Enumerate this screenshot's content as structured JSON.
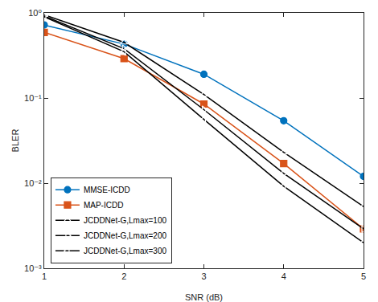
{
  "chart_data": {
    "type": "line",
    "x_label": "SNR (dB)",
    "y_label": "BLER",
    "x": [
      1,
      2,
      3,
      4,
      5
    ],
    "series": [
      {
        "name": "MMSE-ICDD",
        "color": "#0072BD",
        "marker": "circle",
        "values": [
          0.72,
          0.43,
          0.19,
          0.054,
          0.012
        ]
      },
      {
        "name": "MAP-ICDD",
        "color": "#D95319",
        "marker": "square",
        "values": [
          0.59,
          0.29,
          0.085,
          0.017,
          0.0029
        ]
      },
      {
        "name": "JCDDNet-G,Lmax=100",
        "color": "#000000",
        "marker": "triangle-up-open",
        "values": [
          0.95,
          0.45,
          0.11,
          0.023,
          0.0053
        ]
      },
      {
        "name": "JCDDNet-G,Lmax=200",
        "color": "#000000",
        "marker": "triangle-right-open",
        "values": [
          0.92,
          0.38,
          0.073,
          0.013,
          0.0029
        ]
      },
      {
        "name": "JCDDNet-G,Lmax=300",
        "color": "#000000",
        "marker": "triangle-left-open",
        "values": [
          0.9,
          0.35,
          0.056,
          0.0092,
          0.002
        ]
      }
    ],
    "xlim": [
      1,
      5
    ],
    "xticks": [
      1,
      2,
      3,
      4,
      5
    ],
    "ylim": [
      0.001,
      1
    ],
    "yticks": [
      {
        "value": 0.001,
        "label": "10⁻³"
      },
      {
        "value": 0.01,
        "label": "10⁻²"
      },
      {
        "value": 0.1,
        "label": "10⁻¹"
      },
      {
        "value": 1,
        "label": "10⁰"
      }
    ],
    "log": "y",
    "grid": false,
    "legend": "lower left"
  }
}
